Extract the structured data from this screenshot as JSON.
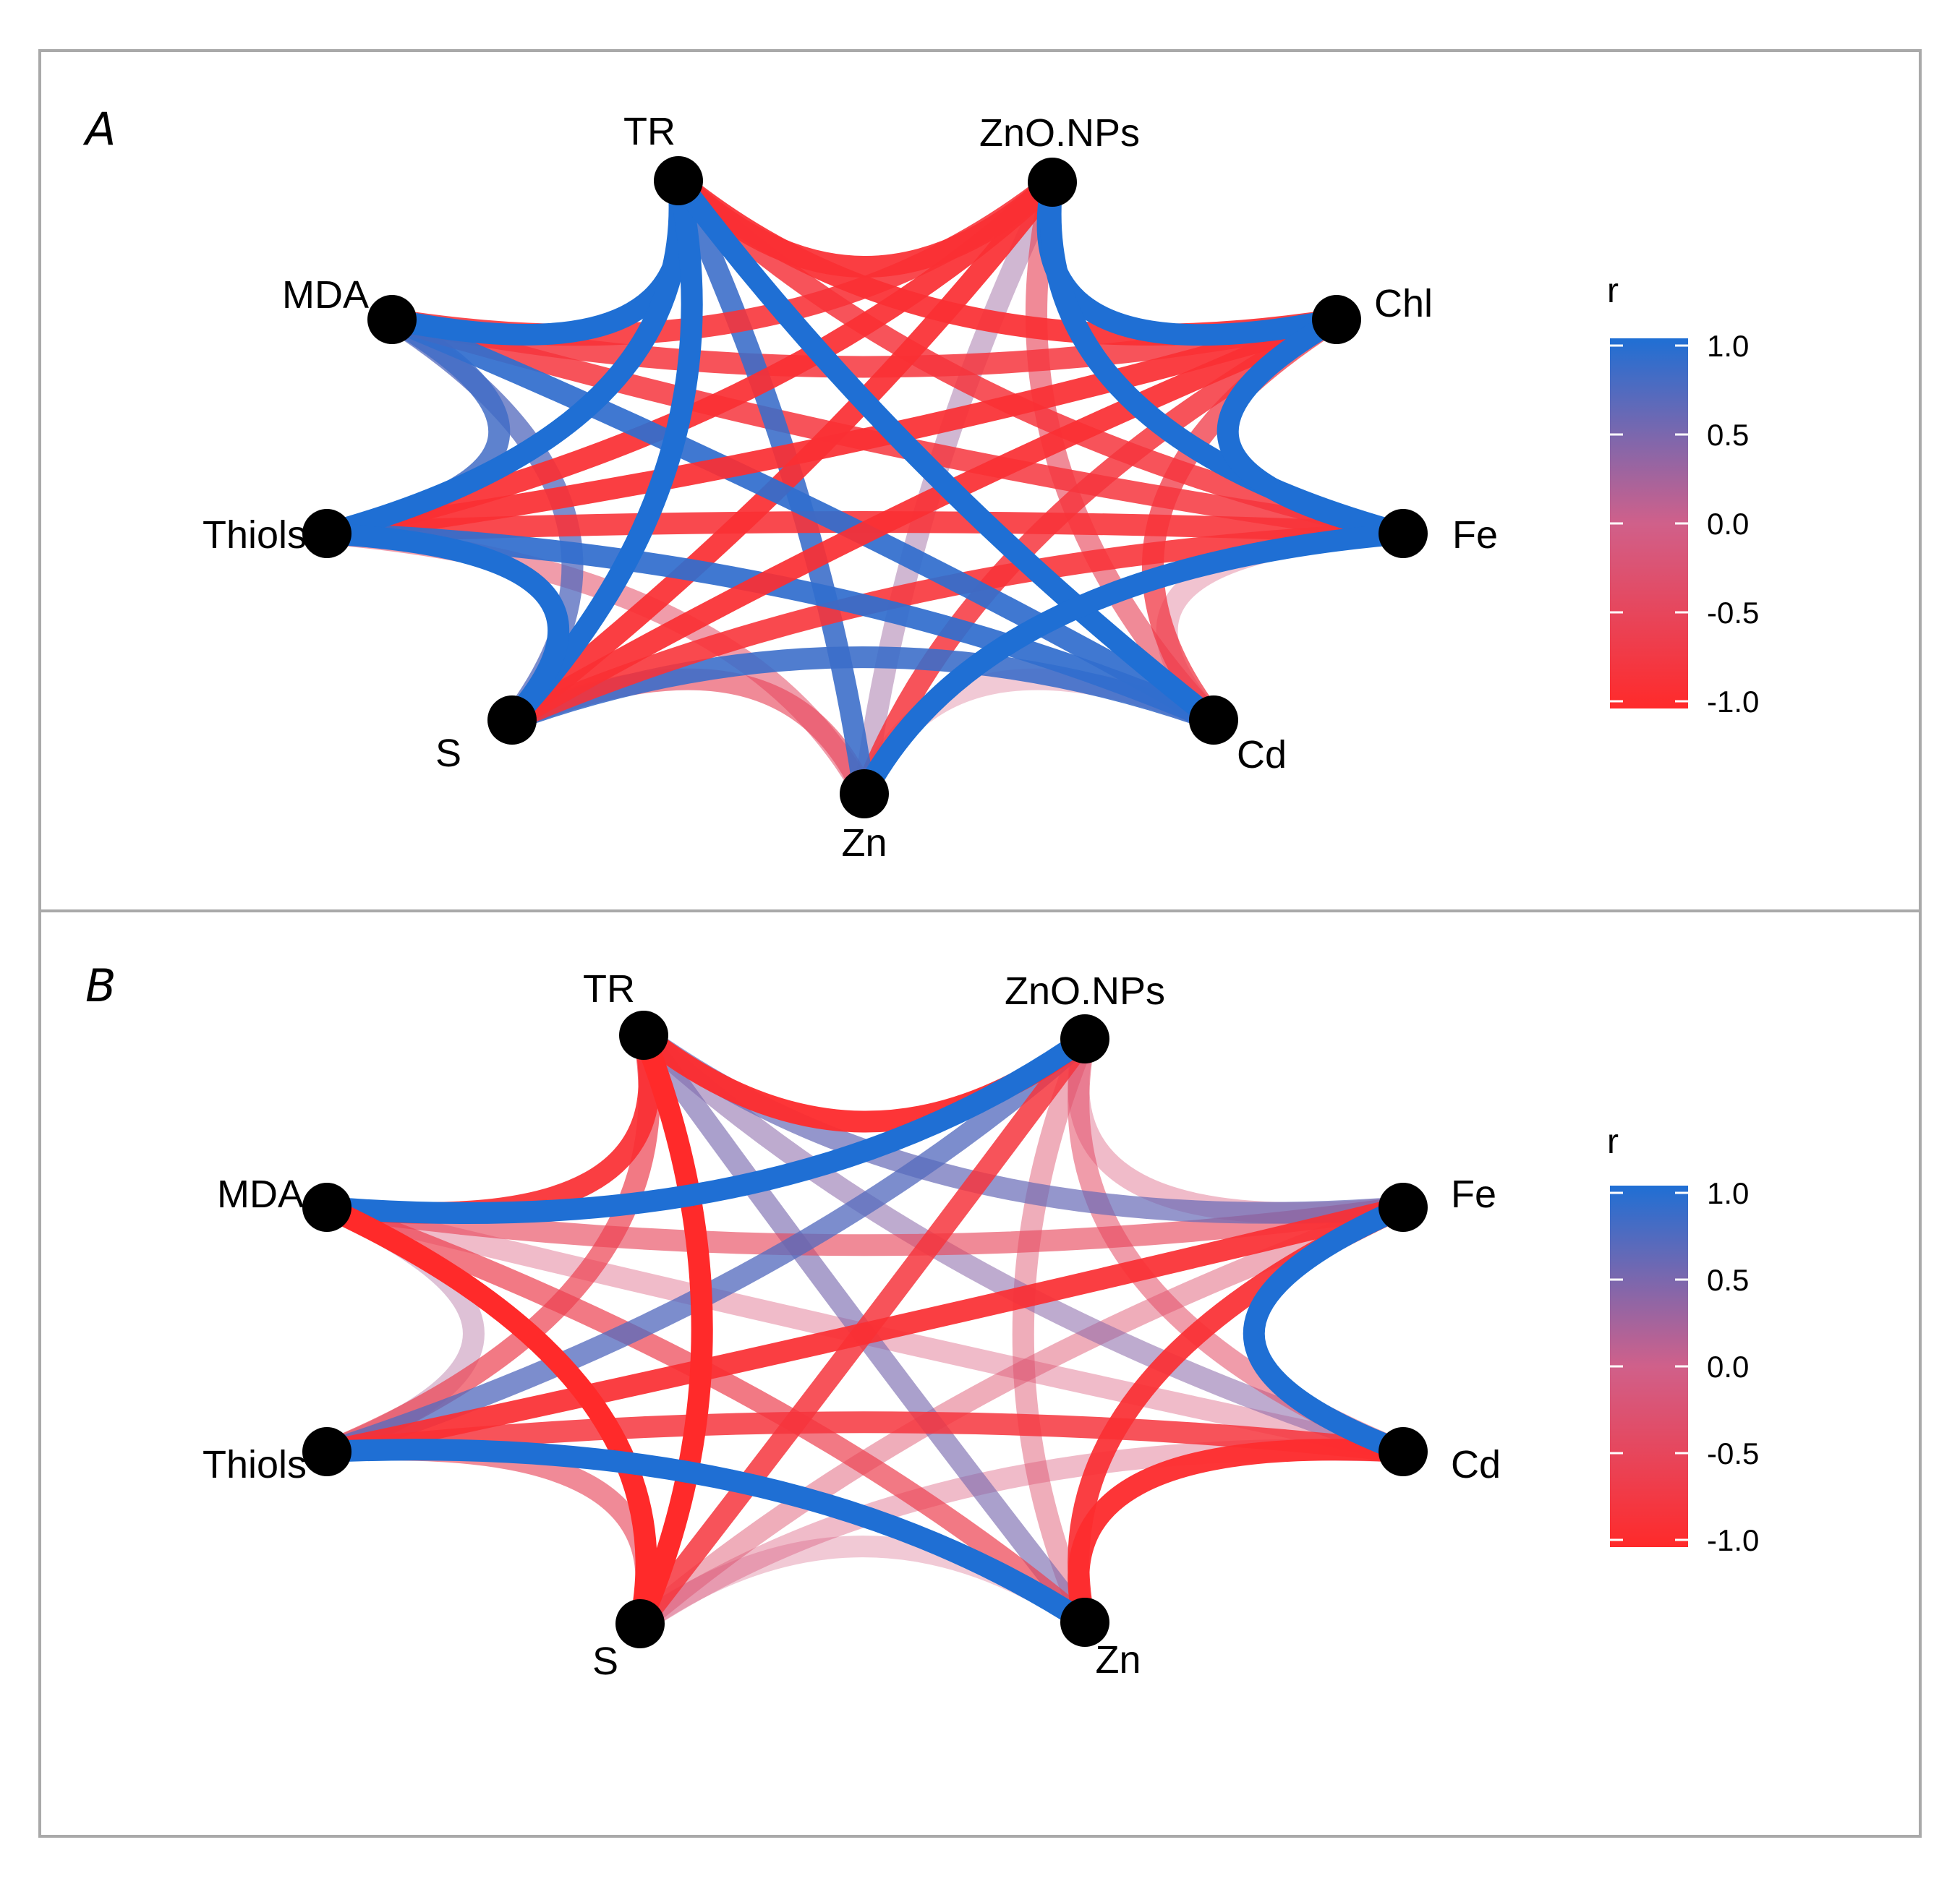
{
  "colors": {
    "positive": "#1f6fd4",
    "neutral": "#d0608a",
    "negative": "#ff2a2a",
    "node": "#000000",
    "frame": "#a9a9a9"
  },
  "legend": {
    "title": "r",
    "ticks": [
      "1.0",
      "0.5",
      "0.0",
      "-0.5",
      "-1.0"
    ]
  },
  "panels": [
    {
      "letter": "A",
      "nodes": [
        "TR",
        "ZnO.NPs",
        "Chl",
        "Fe",
        "Cd",
        "Zn",
        "S",
        "Thiols",
        "MDA"
      ],
      "edges": [
        [
          "TR",
          "ZnO.NPs",
          -0.9
        ],
        [
          "TR",
          "MDA",
          1.0
        ],
        [
          "TR",
          "Thiols",
          1.0
        ],
        [
          "TR",
          "S",
          1.0
        ],
        [
          "TR",
          "Cd",
          1.0
        ],
        [
          "TR",
          "Zn",
          0.85
        ],
        [
          "TR",
          "Fe",
          -0.8
        ],
        [
          "TR",
          "Chl",
          -0.9
        ],
        [
          "ZnO.NPs",
          "Chl",
          1.0
        ],
        [
          "ZnO.NPs",
          "Fe",
          1.0
        ],
        [
          "ZnO.NPs",
          "Cd",
          -0.5
        ],
        [
          "ZnO.NPs",
          "Zn",
          0.3
        ],
        [
          "ZnO.NPs",
          "S",
          -0.9
        ],
        [
          "ZnO.NPs",
          "Thiols",
          -0.9
        ],
        [
          "ZnO.NPs",
          "MDA",
          -0.85
        ],
        [
          "MDA",
          "Thiols",
          0.8
        ],
        [
          "MDA",
          "S",
          0.7
        ],
        [
          "MDA",
          "Cd",
          0.9
        ],
        [
          "MDA",
          "Fe",
          -0.8
        ],
        [
          "MDA",
          "Chl",
          -0.8
        ],
        [
          "Thiols",
          "S",
          1.0
        ],
        [
          "Thiols",
          "Fe",
          -0.85
        ],
        [
          "Thiols",
          "Chl",
          -0.9
        ],
        [
          "Thiols",
          "Cd",
          0.9
        ],
        [
          "Thiols",
          "Zn",
          -0.4
        ],
        [
          "S",
          "Zn",
          -0.5
        ],
        [
          "S",
          "Cd",
          0.85
        ],
        [
          "S",
          "Fe",
          -0.85
        ],
        [
          "S",
          "Chl",
          -0.9
        ],
        [
          "Chl",
          "Fe",
          1.0
        ],
        [
          "Chl",
          "Zn",
          -0.8
        ],
        [
          "Chl",
          "Cd",
          -0.7
        ],
        [
          "Fe",
          "Zn",
          1.0
        ],
        [
          "Fe",
          "Cd",
          -0.15
        ],
        [
          "Zn",
          "Cd",
          -0.1
        ]
      ]
    },
    {
      "letter": "B",
      "nodes": [
        "TR",
        "ZnO.NPs",
        "Fe",
        "Cd",
        "Zn",
        "S",
        "Thiols",
        "MDA"
      ],
      "edges": [
        [
          "TR",
          "ZnO.NPs",
          -0.95
        ],
        [
          "TR",
          "MDA",
          -0.9
        ],
        [
          "TR",
          "S",
          -1.0
        ],
        [
          "TR",
          "Zn",
          0.5
        ],
        [
          "TR",
          "Cd",
          0.4
        ],
        [
          "TR",
          "Fe",
          0.6
        ],
        [
          "TR",
          "Thiols",
          -0.6
        ],
        [
          "ZnO.NPs",
          "MDA",
          1.0
        ],
        [
          "ZnO.NPs",
          "Thiols",
          0.7
        ],
        [
          "ZnO.NPs",
          "S",
          -0.8
        ],
        [
          "ZnO.NPs",
          "Zn",
          -0.3
        ],
        [
          "ZnO.NPs",
          "Cd",
          -0.4
        ],
        [
          "ZnO.NPs",
          "Fe",
          -0.2
        ],
        [
          "MDA",
          "Thiols",
          0.2
        ],
        [
          "MDA",
          "S",
          -1.0
        ],
        [
          "MDA",
          "Zn",
          -0.6
        ],
        [
          "MDA",
          "Cd",
          -0.2
        ],
        [
          "MDA",
          "Fe",
          -0.5
        ],
        [
          "Thiols",
          "S",
          -0.5
        ],
        [
          "Thiols",
          "Fe",
          -0.9
        ],
        [
          "Thiols",
          "Cd",
          -0.8
        ],
        [
          "Thiols",
          "Zn",
          1.0
        ],
        [
          "S",
          "Zn",
          -0.1
        ],
        [
          "S",
          "Fe",
          -0.3
        ],
        [
          "S",
          "Cd",
          -0.2
        ],
        [
          "Fe",
          "Cd",
          1.0
        ],
        [
          "Fe",
          "Zn",
          -0.9
        ],
        [
          "Cd",
          "Zn",
          -0.95
        ]
      ]
    }
  ]
}
